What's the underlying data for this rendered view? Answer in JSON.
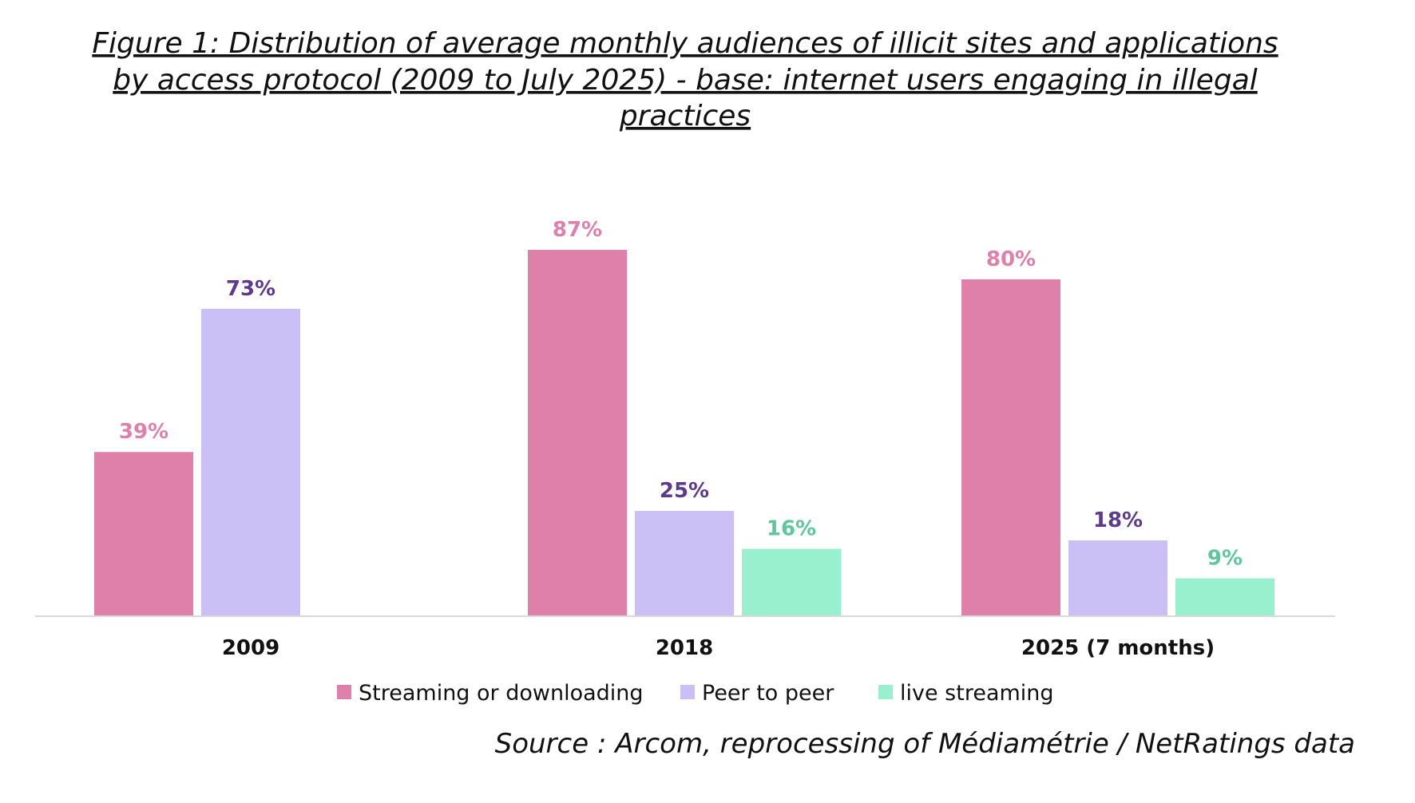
{
  "chart_data": {
    "type": "bar",
    "title_lines": [
      "Figure 1: Distribution of average monthly audiences of illicit sites and applications",
      "by access protocol (2009 to July 2025) - base: internet users engaging in illegal",
      "practices"
    ],
    "categories": [
      "2009",
      "2018",
      "2025 (7 months)"
    ],
    "series": [
      {
        "name": "Streaming or downloading",
        "color": "#df80aa",
        "label_color": "#df80aa",
        "values": [
          39,
          87,
          80
        ],
        "value_labels": [
          "39%",
          "87%",
          "80%"
        ]
      },
      {
        "name": "Peer to peer",
        "color": "#cbc0f5",
        "label_color": "#5e3a8c",
        "values": [
          73,
          25,
          18
        ],
        "value_labels": [
          "73%",
          "25%",
          "18%"
        ]
      },
      {
        "name": "live streaming",
        "color": "#99f0cf",
        "label_color": "#5cc79d",
        "values": [
          null,
          16,
          9
        ],
        "value_labels": [
          null,
          "16%",
          "9%"
        ]
      }
    ],
    "ylim": [
      0,
      100
    ],
    "grid": false,
    "legend_position": "bottom",
    "xlabel": "",
    "ylabel": "",
    "source": "Source : Arcom, reprocessing of Médiamétrie / NetRatings data"
  }
}
